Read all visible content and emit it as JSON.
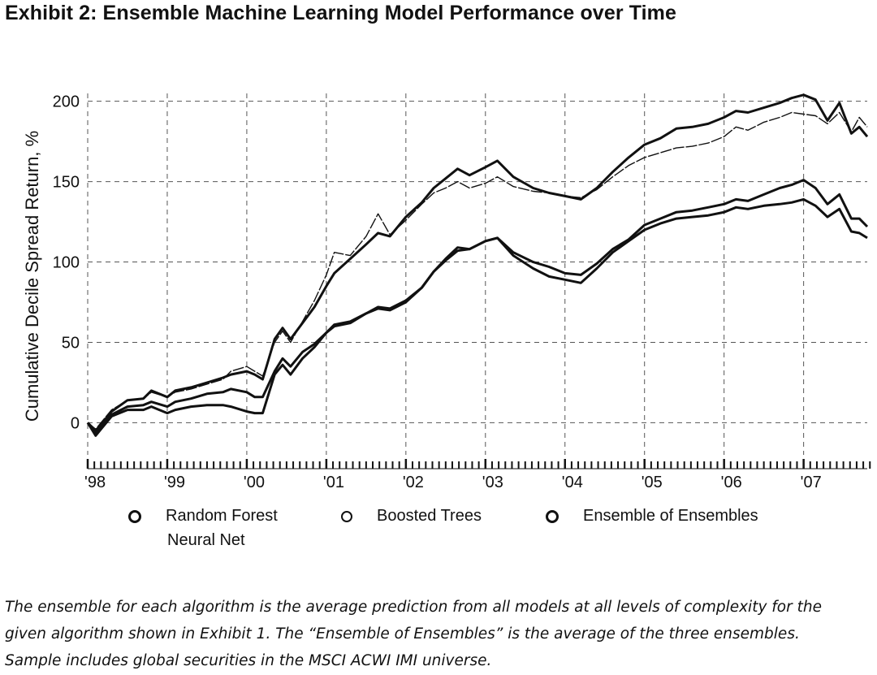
{
  "title": "Exhibit 2: Ensemble Machine Learning Model Performance over Time",
  "footnote": {
    "line1": "The ensemble for each algorithm is the average prediction from all models at all levels of complexity for the",
    "line2": "given algorithm shown in Exhibit 1. The “Ensemble of Ensembles” is the average of the three ensembles.",
    "line3": "Sample includes global securities in the MSCI ACWI IMI universe."
  },
  "legend": {
    "random_forest": "Random Forest",
    "boosted_trees": "Boosted Trees",
    "ensemble": "Ensemble of Ensembles",
    "neural_net": "Neural Net"
  },
  "colors": {
    "line": "#111111",
    "grid": "#555555",
    "background": "#ffffff"
  },
  "chart_data": {
    "type": "line",
    "title": "Exhibit 2: Ensemble Machine Learning Model Performance over Time",
    "xlabel": "",
    "ylabel": "Cumulative Decile Spread Return, %",
    "xlim": [
      1998.0,
      2007.8
    ],
    "ylim": [
      -20,
      215
    ],
    "yticks": [
      0,
      50,
      100,
      150,
      200
    ],
    "xticks": [
      1998,
      1999,
      2000,
      2001,
      2002,
      2003,
      2004,
      2005,
      2006,
      2007
    ],
    "xtick_labels": [
      "'98",
      "'99",
      "'00",
      "'01",
      "'02",
      "'03",
      "'04",
      "'05",
      "'06",
      "'07"
    ],
    "grid": true,
    "legend_position": "bottom",
    "series": [
      {
        "name": "Random Forest",
        "style": "thick",
        "x": [
          1998.0,
          1998.1,
          1998.3,
          1998.5,
          1998.7,
          1998.8,
          1999.0,
          1999.1,
          1999.3,
          1999.5,
          1999.7,
          1999.8,
          2000.0,
          2000.1,
          2000.2,
          2000.35,
          2000.45,
          2000.55,
          2000.7,
          2000.85,
          2001.0,
          2001.1,
          2001.3,
          2001.5,
          2001.65,
          2001.8,
          2002.0,
          2002.2,
          2002.35,
          2002.5,
          2002.65,
          2002.8,
          2003.0,
          2003.15,
          2003.35,
          2003.6,
          2003.8,
          2004.0,
          2004.2,
          2004.4,
          2004.6,
          2004.8,
          2005.0,
          2005.2,
          2005.4,
          2005.6,
          2005.8,
          2006.0,
          2006.15,
          2006.3,
          2006.5,
          2006.7,
          2006.85,
          2007.0,
          2007.15,
          2007.3,
          2007.45,
          2007.6,
          2007.7,
          2007.8
        ],
        "y": [
          0,
          -5,
          7,
          14,
          15,
          20,
          16,
          20,
          22,
          25,
          28,
          30,
          32,
          30,
          27,
          52,
          59,
          52,
          62,
          72,
          85,
          93,
          102,
          111,
          118,
          116,
          128,
          137,
          146,
          152,
          158,
          154,
          159,
          163,
          153,
          146,
          143,
          141,
          139,
          146,
          156,
          165,
          173,
          177,
          183,
          184,
          186,
          190,
          194,
          193,
          196,
          199,
          202,
          204,
          201,
          188,
          199,
          180,
          184,
          178
        ]
      },
      {
        "name": "Boosted Trees",
        "style": "thin",
        "x": [
          1998.0,
          1998.1,
          1998.3,
          1998.5,
          1998.7,
          1998.8,
          1999.0,
          1999.1,
          1999.3,
          1999.5,
          1999.7,
          1999.8,
          2000.0,
          2000.1,
          2000.2,
          2000.35,
          2000.45,
          2000.55,
          2000.7,
          2000.85,
          2001.0,
          2001.1,
          2001.3,
          2001.5,
          2001.65,
          2001.8,
          2002.0,
          2002.2,
          2002.35,
          2002.5,
          2002.65,
          2002.8,
          2003.0,
          2003.15,
          2003.35,
          2003.6,
          2003.8,
          2004.0,
          2004.2,
          2004.4,
          2004.6,
          2004.8,
          2005.0,
          2005.2,
          2005.4,
          2005.6,
          2005.8,
          2006.0,
          2006.15,
          2006.3,
          2006.5,
          2006.7,
          2006.85,
          2007.0,
          2007.15,
          2007.3,
          2007.45,
          2007.6,
          2007.7,
          2007.8
        ],
        "y": [
          0,
          -4,
          8,
          14,
          15,
          19,
          16,
          19,
          21,
          24,
          27,
          32,
          35,
          32,
          29,
          50,
          57,
          50,
          63,
          76,
          92,
          106,
          104,
          116,
          130,
          117,
          126,
          136,
          143,
          146,
          150,
          146,
          149,
          153,
          147,
          144,
          143,
          141,
          140,
          145,
          153,
          160,
          165,
          168,
          171,
          172,
          174,
          178,
          184,
          182,
          187,
          190,
          193,
          192,
          191,
          186,
          193,
          181,
          190,
          184
        ]
      },
      {
        "name": "Ensemble of Ensembles",
        "style": "thick",
        "x": [
          1998.0,
          1998.1,
          1998.3,
          1998.5,
          1998.7,
          1998.8,
          1999.0,
          1999.1,
          1999.3,
          1999.5,
          1999.7,
          1999.8,
          2000.0,
          2000.1,
          2000.2,
          2000.35,
          2000.45,
          2000.55,
          2000.7,
          2000.85,
          2001.0,
          2001.1,
          2001.3,
          2001.5,
          2001.65,
          2001.8,
          2002.0,
          2002.2,
          2002.35,
          2002.5,
          2002.65,
          2002.8,
          2003.0,
          2003.15,
          2003.35,
          2003.6,
          2003.8,
          2004.0,
          2004.2,
          2004.4,
          2004.6,
          2004.8,
          2005.0,
          2005.2,
          2005.4,
          2005.6,
          2005.8,
          2006.0,
          2006.15,
          2006.3,
          2006.5,
          2006.7,
          2006.85,
          2007.0,
          2007.15,
          2007.3,
          2007.45,
          2007.6,
          2007.7,
          2007.8
        ],
        "y": [
          0,
          -6,
          5,
          10,
          11,
          13,
          10,
          13,
          15,
          18,
          19,
          21,
          19,
          16,
          16,
          32,
          40,
          35,
          44,
          49,
          56,
          61,
          63,
          68,
          72,
          71,
          76,
          84,
          94,
          102,
          109,
          108,
          113,
          115,
          106,
          100,
          97,
          93,
          92,
          99,
          108,
          114,
          123,
          127,
          131,
          132,
          134,
          136,
          139,
          138,
          142,
          146,
          148,
          151,
          146,
          136,
          142,
          127,
          127,
          122
        ]
      },
      {
        "name": "Neural Net",
        "style": "thick",
        "x": [
          1998.0,
          1998.1,
          1998.3,
          1998.5,
          1998.7,
          1998.8,
          1999.0,
          1999.1,
          1999.3,
          1999.5,
          1999.7,
          1999.8,
          2000.0,
          2000.1,
          2000.2,
          2000.35,
          2000.45,
          2000.55,
          2000.7,
          2000.85,
          2001.0,
          2001.1,
          2001.3,
          2001.5,
          2001.65,
          2001.8,
          2002.0,
          2002.2,
          2002.35,
          2002.5,
          2002.65,
          2002.8,
          2003.0,
          2003.15,
          2003.35,
          2003.6,
          2003.8,
          2004.0,
          2004.2,
          2004.4,
          2004.6,
          2004.8,
          2005.0,
          2005.2,
          2005.4,
          2005.6,
          2005.8,
          2006.0,
          2006.15,
          2006.3,
          2006.5,
          2006.7,
          2006.85,
          2007.0,
          2007.15,
          2007.3,
          2007.45,
          2007.6,
          2007.7,
          2007.8
        ],
        "y": [
          0,
          -8,
          4,
          8,
          8,
          10,
          6,
          8,
          10,
          11,
          11,
          10,
          7,
          6,
          6,
          30,
          36,
          30,
          40,
          47,
          56,
          60,
          62,
          68,
          71,
          70,
          75,
          84,
          94,
          101,
          107,
          108,
          113,
          115,
          104,
          96,
          91,
          89,
          87,
          96,
          106,
          113,
          120,
          124,
          127,
          128,
          129,
          131,
          134,
          133,
          135,
          136,
          137,
          139,
          135,
          128,
          133,
          119,
          118,
          115
        ]
      }
    ]
  }
}
